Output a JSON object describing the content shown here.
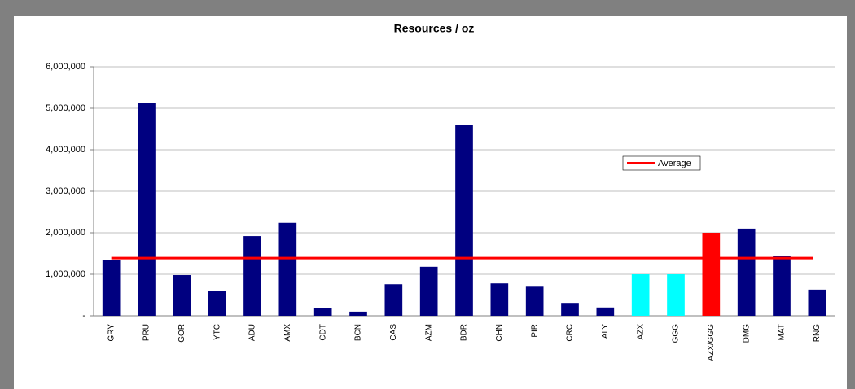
{
  "chart_data": {
    "type": "bar",
    "title": "Resources / oz",
    "categories": [
      "GRY",
      "PRU",
      "GOR",
      "YTC",
      "ADU",
      "AMX",
      "CDT",
      "BCN",
      "CAS",
      "AZM",
      "BDR",
      "CHN",
      "PIR",
      "CRC",
      "ALY",
      "AZX",
      "GGG",
      "AZX/GGG",
      "DMG",
      "MAT",
      "RNG"
    ],
    "values": [
      1350000,
      5120000,
      980000,
      590000,
      1920000,
      2240000,
      180000,
      100000,
      760000,
      1180000,
      4590000,
      780000,
      700000,
      310000,
      200000,
      1000000,
      1000000,
      2000000,
      2100000,
      1450000,
      630000
    ],
    "colors": [
      "#000080",
      "#000080",
      "#000080",
      "#000080",
      "#000080",
      "#000080",
      "#000080",
      "#000080",
      "#000080",
      "#000080",
      "#000080",
      "#000080",
      "#000080",
      "#000080",
      "#000080",
      "#00ffff",
      "#00ffff",
      "#ff0000",
      "#000080",
      "#000080",
      "#000080"
    ],
    "average": {
      "name": "Average",
      "value": 1390000,
      "color": "#ff0000"
    },
    "ylim": [
      0,
      6000000
    ],
    "yticks": [
      {
        "value": 0,
        "label": "-"
      },
      {
        "value": 1000000,
        "label": "1,000,000"
      },
      {
        "value": 2000000,
        "label": "2,000,000"
      },
      {
        "value": 3000000,
        "label": "3,000,000"
      },
      {
        "value": 4000000,
        "label": "4,000,000"
      },
      {
        "value": 5000000,
        "label": "5,000,000"
      },
      {
        "value": 6000000,
        "label": "6,000,000"
      }
    ],
    "grid": true
  }
}
